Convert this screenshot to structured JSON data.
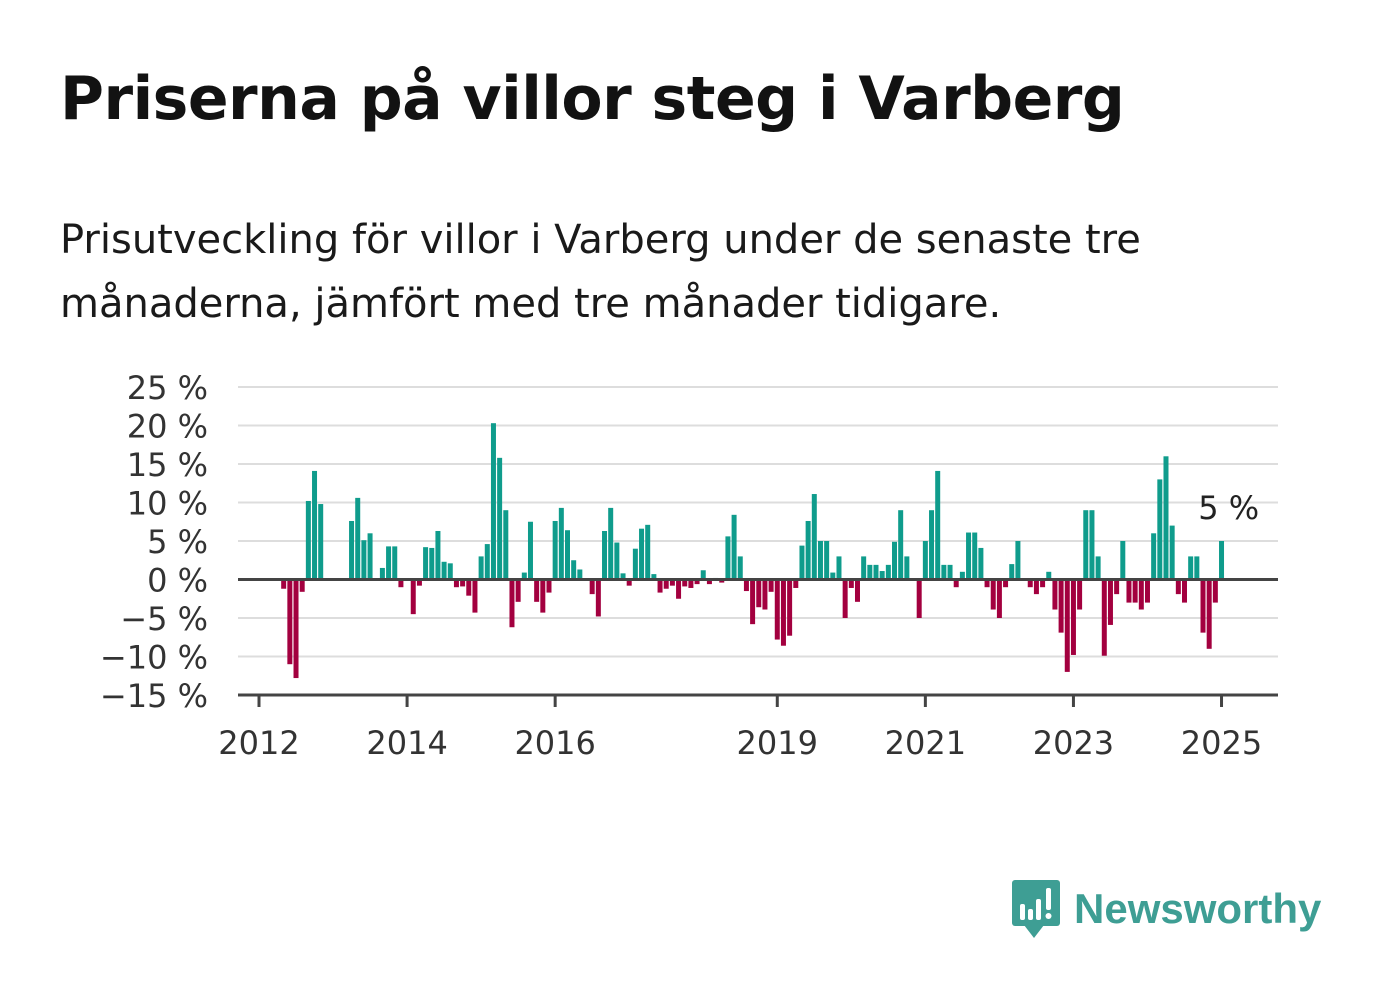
{
  "title": "Priserna på villor steg i Varberg",
  "subtitle": "Prisutveckling för villor i Varberg under de senaste tre månaderna, jämfört med tre månader tidigare.",
  "brand": {
    "name": "Newsworthy",
    "icon": "newsworthy-logo-icon",
    "color": "#3e9e94"
  },
  "colors": {
    "positive": "#0f9c8c",
    "negative": "#a3003f",
    "grid": "#dddddd",
    "axis": "#444444"
  },
  "chart_data": {
    "type": "bar",
    "x_start": "2012-01",
    "x_step": "month",
    "x_ticks": [
      "2012",
      "2014",
      "2016",
      "2019",
      "2021",
      "2023",
      "2025"
    ],
    "x_tick_positions": [
      "2012-01",
      "2014-01",
      "2016-01",
      "2019-01",
      "2021-01",
      "2023-01",
      "2025-01"
    ],
    "y_ticks": [
      "25 %",
      "20 %",
      "15 %",
      "10 %",
      "5 %",
      "0 %",
      "−5 %",
      "−10 %",
      "−15 %"
    ],
    "y_tick_values": [
      25,
      20,
      15,
      10,
      5,
      0,
      -5,
      -10,
      -15
    ],
    "ylim": [
      -15,
      25
    ],
    "grid": true,
    "annotation": {
      "text": "5 %",
      "x": "2025-02",
      "y": 5
    },
    "values": [
      null,
      null,
      null,
      null,
      -1.2,
      -11,
      -12.8,
      -1.6,
      10.2,
      14.1,
      9.8,
      null,
      null,
      null,
      null,
      7.6,
      10.6,
      5.1,
      6.0,
      null,
      1.5,
      4.3,
      4.3,
      -1.0,
      null,
      -4.5,
      -0.8,
      4.2,
      4.1,
      6.3,
      2.3,
      2.1,
      -1.0,
      -0.9,
      -2.1,
      -4.3,
      3.0,
      4.6,
      20.3,
      15.8,
      9.0,
      -6.2,
      -2.9,
      0.9,
      7.5,
      -2.9,
      -4.3,
      -1.7,
      7.6,
      9.3,
      6.4,
      2.5,
      1.3,
      0.1,
      -1.9,
      -4.8,
      6.3,
      9.3,
      4.8,
      0.8,
      -0.8,
      4.0,
      6.6,
      7.1,
      0.7,
      -1.7,
      -1.2,
      -0.8,
      -2.5,
      -0.9,
      -1.1,
      -0.6,
      1.2,
      -0.6,
      0.2,
      -0.4,
      5.6,
      8.4,
      3.0,
      -1.5,
      -5.8,
      -3.6,
      -3.9,
      -1.6,
      -7.8,
      -8.6,
      -7.3,
      -1.1,
      4.4,
      7.6,
      11.1,
      5.0,
      5.0,
      0.9,
      3.0,
      -5.0,
      -1.1,
      -2.9,
      3.0,
      1.9,
      1.9,
      1.1,
      1.9,
      4.9,
      9.0,
      3.0,
      null,
      -5.0,
      5.0,
      9.0,
      14.1,
      1.9,
      1.9,
      -1.0,
      1.0,
      6.1,
      6.1,
      4.1,
      -1.0,
      -3.9,
      -5.0,
      -1.0,
      2.0,
      5.0,
      null,
      -1.0,
      -1.9,
      -1.0,
      1.0,
      -3.9,
      -6.9,
      -12.0,
      -9.8,
      -3.9,
      9.0,
      9.0,
      3.0,
      -9.9,
      -5.9,
      -1.9,
      5.0,
      -3.0,
      -3.0,
      -3.9,
      -3.0,
      6.0,
      13.0,
      16.0,
      7.0,
      -1.9,
      -3.0,
      3.0,
      3.0,
      -6.9,
      -9.0,
      -3.0,
      5.0
    ]
  }
}
